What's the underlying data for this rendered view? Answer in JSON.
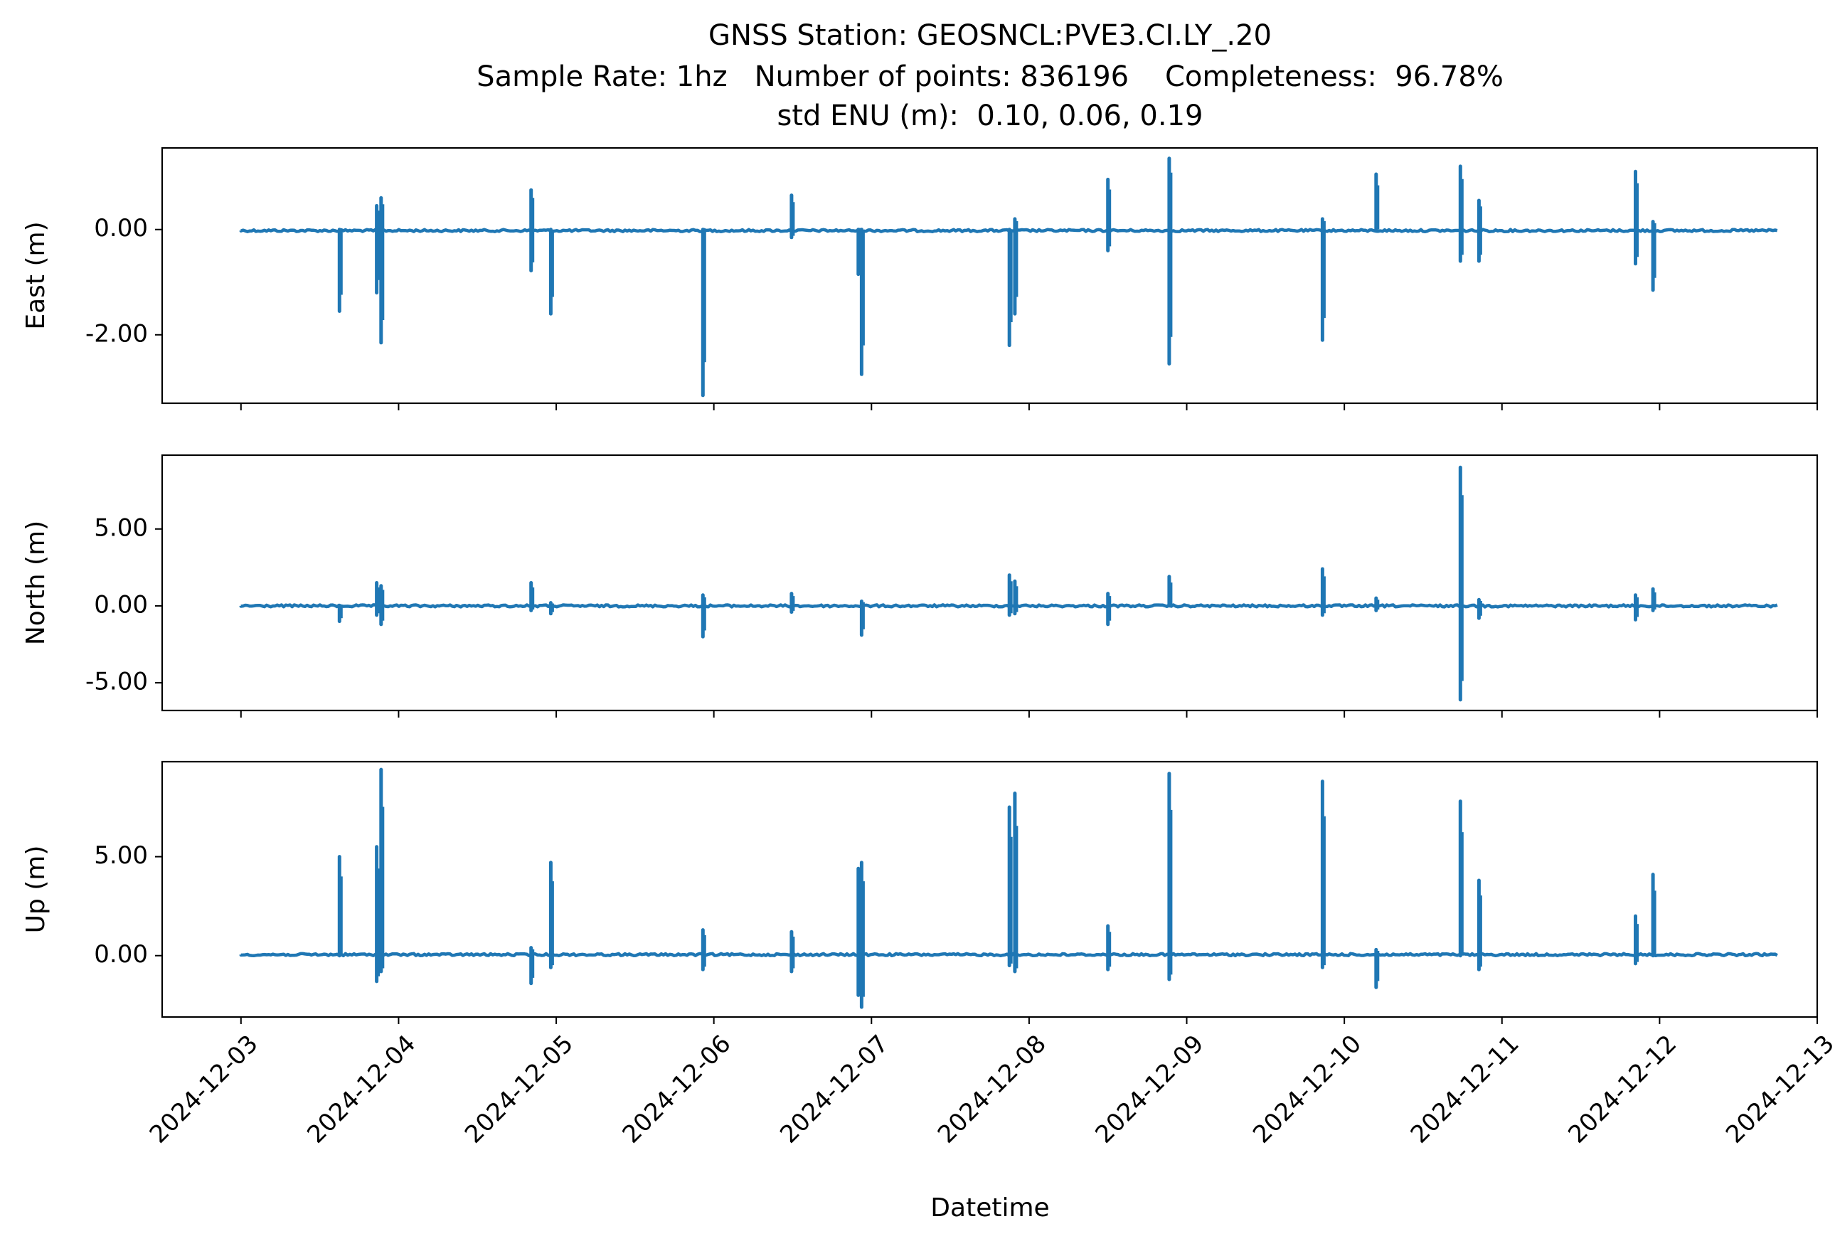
{
  "title_lines": [
    "GNSS Station: GEOSNCL:PVE3.CI.LY_.20",
    "Sample Rate: 1hz   Number of points: 836196    Completeness:  96.78%",
    "std ENU (m):  0.10, 0.06, 0.19"
  ],
  "xlabel": "Datetime",
  "series_color": "#1f77b4",
  "chart_data": [
    {
      "type": "line",
      "ylabel": "East (m)",
      "xlim": [
        "2024-12-02T12:00",
        "2024-12-13T00:00"
      ],
      "ylim": [
        -3.3,
        1.55
      ],
      "yticks": [
        0,
        -2
      ],
      "ytick_labels": [
        "0.00",
        "-2.00"
      ],
      "xticks": [
        "2024-12-03",
        "2024-12-04",
        "2024-12-05",
        "2024-12-06",
        "2024-12-07",
        "2024-12-08",
        "2024-12-09",
        "2024-12-10",
        "2024-12-11",
        "2024-12-12",
        "2024-12-13"
      ],
      "x_range": [
        "2024-12-03T00:00",
        "2024-12-12T18:00"
      ],
      "baseline": -0.02,
      "spikes": [
        {
          "x": "2024-12-03T15:00",
          "low": -1.55,
          "high": 0.0
        },
        {
          "x": "2024-12-03T20:40",
          "low": -1.2,
          "high": 0.45
        },
        {
          "x": "2024-12-03T21:20",
          "low": -2.15,
          "high": 0.6
        },
        {
          "x": "2024-12-04T20:10",
          "low": -0.78,
          "high": 0.75
        },
        {
          "x": "2024-12-04T23:10",
          "low": -1.6,
          "high": 0.0
        },
        {
          "x": "2024-12-05T22:20",
          "low": -3.15,
          "high": 0.0
        },
        {
          "x": "2024-12-06T11:50",
          "low": -0.15,
          "high": 0.65
        },
        {
          "x": "2024-12-06T22:00",
          "low": -0.85,
          "high": 0.0
        },
        {
          "x": "2024-12-06T22:30",
          "low": -2.75,
          "high": 0.0
        },
        {
          "x": "2024-12-07T21:00",
          "low": -2.2,
          "high": 0.0
        },
        {
          "x": "2024-12-07T21:50",
          "low": -1.6,
          "high": 0.2
        },
        {
          "x": "2024-12-08T12:00",
          "low": -0.4,
          "high": 0.95
        },
        {
          "x": "2024-12-08T21:20",
          "low": -2.55,
          "high": 1.35
        },
        {
          "x": "2024-12-09T20:40",
          "low": -2.1,
          "high": 0.2
        },
        {
          "x": "2024-12-10T04:50",
          "low": 0.0,
          "high": 1.05
        },
        {
          "x": "2024-12-10T17:40",
          "low": -0.6,
          "high": 1.2
        },
        {
          "x": "2024-12-10T20:30",
          "low": -0.6,
          "high": 0.55
        },
        {
          "x": "2024-12-11T20:20",
          "low": -0.65,
          "high": 1.1
        },
        {
          "x": "2024-12-11T23:00",
          "low": -1.15,
          "high": 0.15
        }
      ]
    },
    {
      "type": "line",
      "ylabel": "North (m)",
      "xlim": [
        "2024-12-02T12:00",
        "2024-12-13T00:00"
      ],
      "ylim": [
        -6.8,
        9.8
      ],
      "yticks": [
        5,
        0,
        -5
      ],
      "ytick_labels": [
        "5.00",
        "0.00",
        "-5.00"
      ],
      "xticks": [
        "2024-12-03",
        "2024-12-04",
        "2024-12-05",
        "2024-12-06",
        "2024-12-07",
        "2024-12-08",
        "2024-12-09",
        "2024-12-10",
        "2024-12-11",
        "2024-12-12",
        "2024-12-13"
      ],
      "x_range": [
        "2024-12-03T00:00",
        "2024-12-12T18:00"
      ],
      "baseline": 0.0,
      "spikes": [
        {
          "x": "2024-12-03T15:00",
          "low": -1.0,
          "high": 0.0
        },
        {
          "x": "2024-12-03T20:40",
          "low": -0.6,
          "high": 1.5
        },
        {
          "x": "2024-12-03T21:20",
          "low": -1.2,
          "high": 1.3
        },
        {
          "x": "2024-12-04T20:10",
          "low": -0.3,
          "high": 1.5
        },
        {
          "x": "2024-12-04T23:10",
          "low": -0.5,
          "high": 0.2
        },
        {
          "x": "2024-12-05T22:20",
          "low": -2.0,
          "high": 0.7
        },
        {
          "x": "2024-12-06T11:50",
          "low": -0.4,
          "high": 0.8
        },
        {
          "x": "2024-12-06T22:30",
          "low": -1.9,
          "high": 0.3
        },
        {
          "x": "2024-12-07T21:00",
          "low": -0.6,
          "high": 2.0
        },
        {
          "x": "2024-12-07T21:50",
          "low": -0.5,
          "high": 1.6
        },
        {
          "x": "2024-12-08T12:00",
          "low": -1.2,
          "high": 0.8
        },
        {
          "x": "2024-12-08T21:20",
          "low": 0.0,
          "high": 1.9
        },
        {
          "x": "2024-12-09T20:40",
          "low": -0.6,
          "high": 2.4
        },
        {
          "x": "2024-12-10T04:50",
          "low": -0.3,
          "high": 0.5
        },
        {
          "x": "2024-12-10T17:40",
          "low": -6.1,
          "high": 9.0
        },
        {
          "x": "2024-12-10T20:30",
          "low": -0.8,
          "high": 0.4
        },
        {
          "x": "2024-12-11T20:20",
          "low": -0.9,
          "high": 0.7
        },
        {
          "x": "2024-12-11T23:00",
          "low": -0.3,
          "high": 1.1
        }
      ]
    },
    {
      "type": "line",
      "ylabel": "Up (m)",
      "xlim": [
        "2024-12-02T12:00",
        "2024-12-13T00:00"
      ],
      "ylim": [
        -3.1,
        9.8
      ],
      "yticks": [
        5,
        0
      ],
      "ytick_labels": [
        "5.00",
        "0.00"
      ],
      "xticks": [
        "2024-12-03",
        "2024-12-04",
        "2024-12-05",
        "2024-12-06",
        "2024-12-07",
        "2024-12-08",
        "2024-12-09",
        "2024-12-10",
        "2024-12-11",
        "2024-12-12",
        "2024-12-13"
      ],
      "x_range": [
        "2024-12-03T00:00",
        "2024-12-12T18:00"
      ],
      "baseline": 0.05,
      "spikes": [
        {
          "x": "2024-12-03T15:00",
          "low": 0.0,
          "high": 5.0
        },
        {
          "x": "2024-12-03T20:40",
          "low": -1.3,
          "high": 5.5
        },
        {
          "x": "2024-12-03T21:20",
          "low": -0.8,
          "high": 9.4
        },
        {
          "x": "2024-12-04T20:10",
          "low": -1.4,
          "high": 0.4
        },
        {
          "x": "2024-12-04T23:10",
          "low": -0.6,
          "high": 4.7
        },
        {
          "x": "2024-12-05T22:20",
          "low": -0.7,
          "high": 1.3
        },
        {
          "x": "2024-12-06T11:50",
          "low": -0.8,
          "high": 1.2
        },
        {
          "x": "2024-12-06T22:00",
          "low": -2.0,
          "high": 4.4
        },
        {
          "x": "2024-12-06T22:30",
          "low": -2.6,
          "high": 4.7
        },
        {
          "x": "2024-12-07T21:00",
          "low": -0.5,
          "high": 7.5
        },
        {
          "x": "2024-12-07T21:50",
          "low": -0.8,
          "high": 8.2
        },
        {
          "x": "2024-12-08T12:00",
          "low": -0.7,
          "high": 1.5
        },
        {
          "x": "2024-12-08T21:20",
          "low": -1.2,
          "high": 9.2
        },
        {
          "x": "2024-12-09T20:40",
          "low": -0.6,
          "high": 8.8
        },
        {
          "x": "2024-12-10T04:50",
          "low": -1.6,
          "high": 0.3
        },
        {
          "x": "2024-12-10T17:40",
          "low": 0.0,
          "high": 7.8
        },
        {
          "x": "2024-12-10T20:30",
          "low": -0.7,
          "high": 3.8
        },
        {
          "x": "2024-12-11T20:20",
          "low": -0.4,
          "high": 2.0
        },
        {
          "x": "2024-12-11T23:00",
          "low": 0.0,
          "high": 4.1
        }
      ]
    }
  ]
}
